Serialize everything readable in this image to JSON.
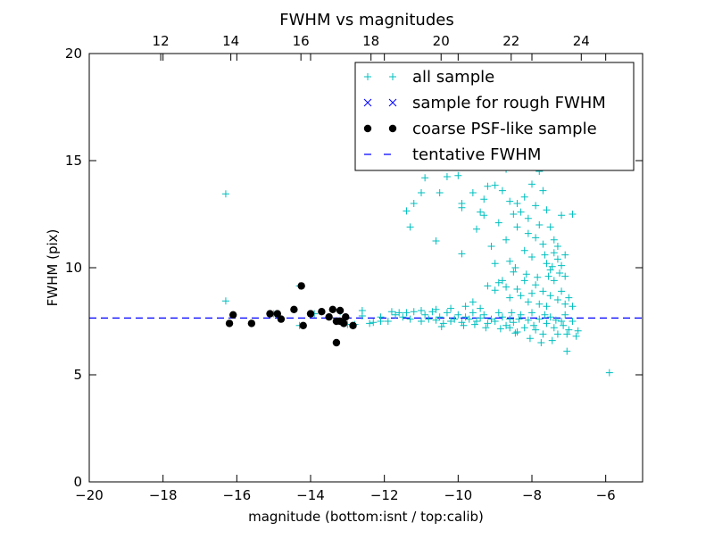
{
  "chart_data": {
    "type": "scatter",
    "title": "FWHM vs magnitudes",
    "xlabel": "magnitude (bottom:isnt / top:calib)",
    "ylabel": "FWHM (pix)",
    "xlim": [
      -20,
      -5
    ],
    "ylim": [
      0,
      20
    ],
    "x_ticks": [
      -20,
      -18,
      -16,
      -14,
      -12,
      -10,
      -8,
      -6
    ],
    "x_tick_labels": [
      "−20",
      "−18",
      "−16",
      "−14",
      "−12",
      "−10",
      "−8",
      "−6"
    ],
    "y_ticks": [
      0,
      5,
      10,
      15,
      20
    ],
    "y_tick_labels": [
      "0",
      "5",
      "10",
      "15",
      "20"
    ],
    "top_axis": {
      "xlim": [
        9.96,
        25.75
      ],
      "ticks": [
        12,
        14,
        16,
        18,
        20,
        22,
        24
      ],
      "tick_labels": [
        "12",
        "14",
        "16",
        "18",
        "20",
        "22",
        "24"
      ]
    },
    "grid": false,
    "legend_position": "top-right",
    "series": [
      {
        "name": "all sample",
        "marker": "plus",
        "color": "#00bfbf",
        "points": [
          [
            -16.3,
            13.45
          ],
          [
            -16.3,
            8.45
          ],
          [
            -16.1,
            7.8
          ],
          [
            -15.6,
            7.4
          ],
          [
            -15.0,
            7.85
          ],
          [
            -14.8,
            7.6
          ],
          [
            -14.3,
            9.15
          ],
          [
            -14.3,
            7.3
          ],
          [
            -13.9,
            7.85
          ],
          [
            -13.3,
            6.5
          ],
          [
            -13.2,
            7.95
          ],
          [
            -13.0,
            7.35
          ],
          [
            -12.8,
            7.35
          ],
          [
            -12.6,
            7.75
          ],
          [
            -12.6,
            8.0
          ],
          [
            -12.4,
            7.4
          ],
          [
            -12.3,
            7.45
          ],
          [
            -12.1,
            7.5
          ],
          [
            -11.9,
            7.5
          ],
          [
            -11.7,
            7.8
          ],
          [
            -11.6,
            7.9
          ],
          [
            -11.5,
            7.7
          ],
          [
            -11.4,
            7.9
          ],
          [
            -11.3,
            7.6
          ],
          [
            -11.2,
            7.95
          ],
          [
            -11.0,
            7.5
          ],
          [
            -10.9,
            7.8
          ],
          [
            -10.8,
            7.6
          ],
          [
            -10.7,
            7.95
          ],
          [
            -10.6,
            7.55
          ],
          [
            -10.5,
            7.7
          ],
          [
            -10.4,
            7.4
          ],
          [
            -10.3,
            7.9
          ],
          [
            -10.2,
            7.5
          ],
          [
            -10.1,
            7.6
          ],
          [
            -10.0,
            7.8
          ],
          [
            -9.9,
            7.45
          ],
          [
            -9.8,
            7.7
          ],
          [
            -9.7,
            7.6
          ],
          [
            -9.6,
            7.9
          ],
          [
            -9.5,
            7.5
          ],
          [
            -9.4,
            7.65
          ],
          [
            -9.3,
            7.8
          ],
          [
            -9.2,
            7.4
          ],
          [
            -9.1,
            7.6
          ],
          [
            -9.0,
            7.5
          ],
          [
            -8.9,
            7.9
          ],
          [
            -8.8,
            7.7
          ],
          [
            -8.7,
            7.3
          ],
          [
            -8.6,
            7.6
          ],
          [
            -8.5,
            7.45
          ],
          [
            -8.4,
            7.0
          ],
          [
            -8.3,
            7.8
          ],
          [
            -8.2,
            7.2
          ],
          [
            -8.1,
            7.55
          ],
          [
            -8.0,
            7.9
          ],
          [
            -7.9,
            7.1
          ],
          [
            -7.8,
            7.6
          ],
          [
            -7.7,
            6.9
          ],
          [
            -7.6,
            7.4
          ],
          [
            -7.5,
            7.7
          ],
          [
            -7.4,
            7.2
          ],
          [
            -7.3,
            6.9
          ],
          [
            -7.2,
            7.5
          ],
          [
            -7.1,
            7.8
          ],
          [
            -7.0,
            7.1
          ],
          [
            -6.9,
            7.5
          ],
          [
            -6.8,
            6.8
          ],
          [
            -7.05,
            6.1
          ],
          [
            -5.9,
            5.1
          ],
          [
            -8.55,
            7.9
          ],
          [
            -8.35,
            7.6
          ],
          [
            -7.95,
            7.3
          ],
          [
            -7.65,
            7.8
          ],
          [
            -7.35,
            7.55
          ],
          [
            -7.15,
            7.3
          ],
          [
            -11.4,
            12.65
          ],
          [
            -11.3,
            11.9
          ],
          [
            -11.2,
            13.0
          ],
          [
            -11.0,
            13.5
          ],
          [
            -10.9,
            14.2
          ],
          [
            -10.6,
            11.25
          ],
          [
            -10.5,
            13.5
          ],
          [
            -10.3,
            14.25
          ],
          [
            -10.0,
            14.3
          ],
          [
            -9.9,
            13.0
          ],
          [
            -9.9,
            12.8
          ],
          [
            -9.9,
            10.65
          ],
          [
            -9.8,
            14.8
          ],
          [
            -9.6,
            13.5
          ],
          [
            -9.5,
            11.8
          ],
          [
            -9.4,
            12.6
          ],
          [
            -9.3,
            13.2
          ],
          [
            -9.3,
            12.45
          ],
          [
            -9.2,
            13.8
          ],
          [
            -9.1,
            11.0
          ],
          [
            -9.0,
            13.85
          ],
          [
            -9.0,
            10.2
          ],
          [
            -8.9,
            12.1
          ],
          [
            -8.8,
            13.6
          ],
          [
            -8.8,
            9.4
          ],
          [
            -8.7,
            14.6
          ],
          [
            -8.7,
            11.3
          ],
          [
            -8.6,
            13.1
          ],
          [
            -8.6,
            10.3
          ],
          [
            -8.5,
            12.5
          ],
          [
            -8.5,
            9.8
          ],
          [
            -8.4,
            13.0
          ],
          [
            -8.4,
            11.9
          ],
          [
            -8.3,
            14.7
          ],
          [
            -8.3,
            12.6
          ],
          [
            -8.2,
            13.3
          ],
          [
            -8.2,
            10.8
          ],
          [
            -8.1,
            12.3
          ],
          [
            -8.1,
            11.6
          ],
          [
            -8.0,
            13.9
          ],
          [
            -8.0,
            10.5
          ],
          [
            -7.9,
            12.9
          ],
          [
            -7.9,
            11.4
          ],
          [
            -7.8,
            14.5
          ],
          [
            -7.8,
            12.0
          ],
          [
            -7.7,
            13.6
          ],
          [
            -7.7,
            11.1
          ],
          [
            -7.6,
            12.7
          ],
          [
            -7.6,
            10.2
          ],
          [
            -7.5,
            11.9
          ],
          [
            -7.5,
            9.9
          ],
          [
            -7.4,
            11.3
          ],
          [
            -7.4,
            10.7
          ],
          [
            -7.3,
            10.4
          ],
          [
            -7.3,
            11.0
          ],
          [
            -7.2,
            10.1
          ],
          [
            -7.2,
            12.45
          ],
          [
            -7.1,
            9.6
          ],
          [
            -7.1,
            10.6
          ],
          [
            -6.9,
            12.5
          ],
          [
            -8.25,
            19.3
          ],
          [
            -8.1,
            17.5
          ],
          [
            -8.0,
            16.6
          ],
          [
            -7.9,
            15.9
          ],
          [
            -7.8,
            15.3
          ],
          [
            -7.7,
            16.1
          ],
          [
            -7.6,
            14.8
          ],
          [
            -7.5,
            15.0
          ],
          [
            -9.2,
            9.15
          ],
          [
            -9.0,
            8.95
          ],
          [
            -8.9,
            9.3
          ],
          [
            -8.7,
            9.1
          ],
          [
            -8.6,
            8.6
          ],
          [
            -8.4,
            9.0
          ],
          [
            -8.3,
            8.7
          ],
          [
            -8.2,
            9.4
          ],
          [
            -8.1,
            8.4
          ],
          [
            -8.0,
            8.8
          ],
          [
            -7.9,
            9.2
          ],
          [
            -7.8,
            8.3
          ],
          [
            -7.7,
            8.9
          ],
          [
            -7.6,
            8.2
          ],
          [
            -7.5,
            8.7
          ],
          [
            -7.4,
            9.4
          ],
          [
            -7.3,
            8.5
          ],
          [
            -7.2,
            8.9
          ],
          [
            -7.1,
            8.3
          ],
          [
            -7.0,
            8.6
          ],
          [
            -6.9,
            8.2
          ],
          [
            -7.45,
            10.05
          ],
          [
            -7.25,
            9.75
          ],
          [
            -7.55,
            9.6
          ],
          [
            -7.85,
            9.55
          ],
          [
            -8.15,
            9.7
          ],
          [
            -7.65,
            10.6
          ],
          [
            -8.45,
            10.0
          ],
          [
            -9.6,
            8.4
          ],
          [
            -9.4,
            8.1
          ],
          [
            -9.8,
            8.2
          ],
          [
            -10.2,
            8.1
          ],
          [
            -10.6,
            8.05
          ],
          [
            -11.0,
            8.0
          ],
          [
            -11.8,
            7.95
          ],
          [
            -12.1,
            7.7
          ],
          [
            -9.25,
            7.2
          ],
          [
            -9.55,
            7.35
          ],
          [
            -8.85,
            7.15
          ],
          [
            -8.45,
            6.95
          ],
          [
            -8.05,
            6.7
          ],
          [
            -7.75,
            6.5
          ],
          [
            -7.45,
            6.6
          ],
          [
            -7.05,
            6.9
          ],
          [
            -6.75,
            7.05
          ],
          [
            -8.6,
            7.2
          ],
          [
            -9.85,
            7.3
          ],
          [
            -10.45,
            7.25
          ]
        ]
      },
      {
        "name": "sample for rough FWHM",
        "marker": "x",
        "color": "#0000ff",
        "points": []
      },
      {
        "name": "coarse PSF-like sample",
        "marker": "circle",
        "color": "#000000",
        "points": [
          [
            -16.2,
            7.4
          ],
          [
            -16.1,
            7.8
          ],
          [
            -15.6,
            7.4
          ],
          [
            -15.1,
            7.85
          ],
          [
            -14.9,
            7.85
          ],
          [
            -14.8,
            7.6
          ],
          [
            -14.45,
            8.05
          ],
          [
            -14.25,
            9.15
          ],
          [
            -14.2,
            7.3
          ],
          [
            -14.0,
            7.85
          ],
          [
            -13.7,
            7.95
          ],
          [
            -13.5,
            7.7
          ],
          [
            -13.4,
            8.05
          ],
          [
            -13.3,
            7.5
          ],
          [
            -13.3,
            6.5
          ],
          [
            -13.2,
            8.0
          ],
          [
            -13.2,
            7.5
          ],
          [
            -13.1,
            7.4
          ],
          [
            -13.05,
            7.7
          ],
          [
            -12.85,
            7.3
          ]
        ]
      },
      {
        "name": "tentative FWHM",
        "marker": "dashed-line",
        "color": "#0000ff",
        "y": 7.65
      }
    ]
  }
}
